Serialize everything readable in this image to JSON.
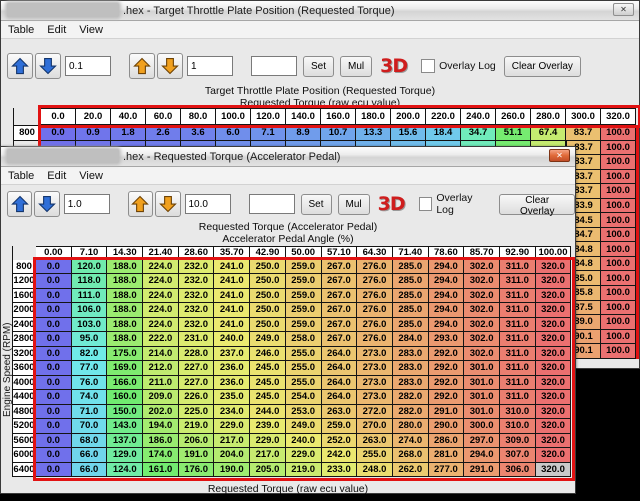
{
  "icons": {
    "close_glyph": "✕"
  },
  "colors": {
    "annotation_red": "#e11212",
    "close_button_highlight": "#e06a38",
    "selected_cell_gray": "#c9c9c9",
    "logo_red": "#cf1d1d"
  },
  "back_window": {
    "title_suffix": ".hex - Target Throttle Plate Position (Requested Torque)",
    "menu": {
      "table": "Table",
      "edit": "Edit",
      "view": "View"
    },
    "toolbar": {
      "fine_step": "0.1",
      "coarse_step": "1",
      "set_field": "",
      "set": "Set",
      "mul": "Mul",
      "threed": "3D",
      "overlay_log": "Overlay Log",
      "clear_overlay": "Clear Overlay"
    },
    "table_title": "Target Throttle Plate Position (Requested Torque)",
    "x_axis_title": "Requested Torque (raw ecu value)"
  },
  "front_window": {
    "title_suffix": ".hex - Requested Torque (Accelerator Pedal)",
    "menu": {
      "table": "Table",
      "edit": "Edit",
      "view": "View"
    },
    "toolbar": {
      "fine_step": "1.0",
      "coarse_step": "10.0",
      "set_field": "",
      "set": "Set",
      "mul": "Mul",
      "threed": "3D",
      "overlay_log": "Overlay Log",
      "clear_overlay": "Clear Overlay"
    },
    "table_title": "Requested Torque (Accelerator Pedal)",
    "x_axis_title": "Accelerator Pedal Angle (%)",
    "y_axis_title": "Engine Speed (RPM)",
    "bottom_axis_title": "Requested Torque (raw ecu value)"
  },
  "chart_data": [
    {
      "type": "heatmap",
      "name": "target_throttle_plate_position",
      "title": "Target Throttle Plate Position (Requested Torque)",
      "x_label": "Requested Torque (raw ecu value)",
      "value_range": [
        0,
        100
      ],
      "col_headers": [
        "0.0",
        "20.0",
        "40.0",
        "60.0",
        "80.0",
        "100.0",
        "120.0",
        "140.0",
        "160.0",
        "180.0",
        "200.0",
        "220.0",
        "240.0",
        "260.0",
        "280.0",
        "300.0",
        "320.0"
      ],
      "row_labels": [
        "800"
      ],
      "rows": [
        [
          0.0,
          0.9,
          1.8,
          2.6,
          3.6,
          6.0,
          7.1,
          8.9,
          10.7,
          13.3,
          15.6,
          18.4,
          34.7,
          51.1,
          67.4,
          83.7,
          100.0
        ]
      ],
      "visible_right_columns": {
        "col_headers": [
          "300.0",
          "320.0"
        ],
        "rows": [
          [
            83.7,
            100.0
          ],
          [
            83.7,
            100.0
          ],
          [
            83.7,
            100.0
          ],
          [
            83.7,
            100.0
          ],
          [
            83.9,
            100.0
          ],
          [
            84.5,
            100.0
          ],
          [
            84.7,
            100.0
          ],
          [
            84.8,
            100.0
          ],
          [
            84.8,
            100.0
          ],
          [
            85.0,
            100.0
          ],
          [
            85.8,
            100.0
          ],
          [
            87.5,
            100.0
          ],
          [
            89.0,
            100.0
          ],
          [
            90.1,
            100.0
          ],
          [
            90.1,
            100.0
          ]
        ]
      }
    },
    {
      "type": "heatmap",
      "name": "requested_torque_accelerator_pedal",
      "title": "Requested Torque (Accelerator Pedal)",
      "x_label": "Accelerator Pedal Angle (%)",
      "y_label": "Engine Speed (RPM)",
      "value_range": [
        0,
        320
      ],
      "col_headers": [
        "0.00",
        "7.10",
        "14.30",
        "21.40",
        "28.60",
        "35.70",
        "42.90",
        "50.00",
        "57.10",
        "64.30",
        "71.40",
        "78.60",
        "85.70",
        "92.90",
        "100.00"
      ],
      "row_labels": [
        "800",
        "1200",
        "1600",
        "2000",
        "2400",
        "2800",
        "3200",
        "3600",
        "4000",
        "4400",
        "4800",
        "5200",
        "5600",
        "6000",
        "6400"
      ],
      "rows": [
        [
          0.0,
          120.0,
          188.0,
          224.0,
          232.0,
          241.0,
          250.0,
          259.0,
          267.0,
          276.0,
          285.0,
          294.0,
          302.0,
          311.0,
          320.0
        ],
        [
          0.0,
          118.0,
          188.0,
          224.0,
          232.0,
          241.0,
          250.0,
          259.0,
          267.0,
          276.0,
          285.0,
          294.0,
          302.0,
          311.0,
          320.0
        ],
        [
          0.0,
          111.0,
          188.0,
          224.0,
          232.0,
          241.0,
          250.0,
          259.0,
          267.0,
          276.0,
          285.0,
          294.0,
          302.0,
          311.0,
          320.0
        ],
        [
          0.0,
          106.0,
          188.0,
          224.0,
          232.0,
          241.0,
          250.0,
          259.0,
          267.0,
          276.0,
          285.0,
          294.0,
          302.0,
          311.0,
          320.0
        ],
        [
          0.0,
          103.0,
          188.0,
          224.0,
          232.0,
          241.0,
          250.0,
          259.0,
          267.0,
          276.0,
          285.0,
          294.0,
          302.0,
          311.0,
          320.0
        ],
        [
          0.0,
          95.0,
          188.0,
          222.0,
          231.0,
          240.0,
          249.0,
          258.0,
          267.0,
          276.0,
          284.0,
          293.0,
          302.0,
          311.0,
          320.0
        ],
        [
          0.0,
          82.0,
          175.0,
          214.0,
          228.0,
          237.0,
          246.0,
          255.0,
          264.0,
          273.0,
          283.0,
          292.0,
          302.0,
          311.0,
          320.0
        ],
        [
          0.0,
          77.0,
          169.0,
          212.0,
          227.0,
          236.0,
          245.0,
          255.0,
          264.0,
          273.0,
          283.0,
          292.0,
          301.0,
          311.0,
          320.0
        ],
        [
          0.0,
          76.0,
          166.0,
          211.0,
          227.0,
          236.0,
          245.0,
          255.0,
          264.0,
          273.0,
          283.0,
          292.0,
          301.0,
          311.0,
          320.0
        ],
        [
          0.0,
          74.0,
          160.0,
          209.0,
          226.0,
          235.0,
          245.0,
          254.0,
          264.0,
          273.0,
          282.0,
          292.0,
          301.0,
          311.0,
          320.0
        ],
        [
          0.0,
          71.0,
          150.0,
          202.0,
          225.0,
          234.0,
          244.0,
          253.0,
          263.0,
          272.0,
          282.0,
          291.0,
          301.0,
          310.0,
          320.0
        ],
        [
          0.0,
          70.0,
          143.0,
          194.0,
          219.0,
          229.0,
          239.0,
          249.0,
          259.0,
          270.0,
          280.0,
          290.0,
          300.0,
          310.0,
          320.0
        ],
        [
          0.0,
          68.0,
          137.0,
          186.0,
          206.0,
          217.0,
          229.0,
          240.0,
          252.0,
          263.0,
          274.0,
          286.0,
          297.0,
          309.0,
          320.0
        ],
        [
          0.0,
          66.0,
          129.0,
          174.0,
          191.0,
          204.0,
          217.0,
          229.0,
          242.0,
          255.0,
          268.0,
          281.0,
          294.0,
          307.0,
          320.0
        ],
        [
          0.0,
          66.0,
          124.0,
          161.0,
          176.0,
          190.0,
          205.0,
          219.0,
          233.0,
          248.0,
          262.0,
          277.0,
          291.0,
          306.0,
          320.0
        ]
      ],
      "selected_cell": {
        "row_label": "6400",
        "col_header": "100.00",
        "value": 320.0
      }
    }
  ]
}
